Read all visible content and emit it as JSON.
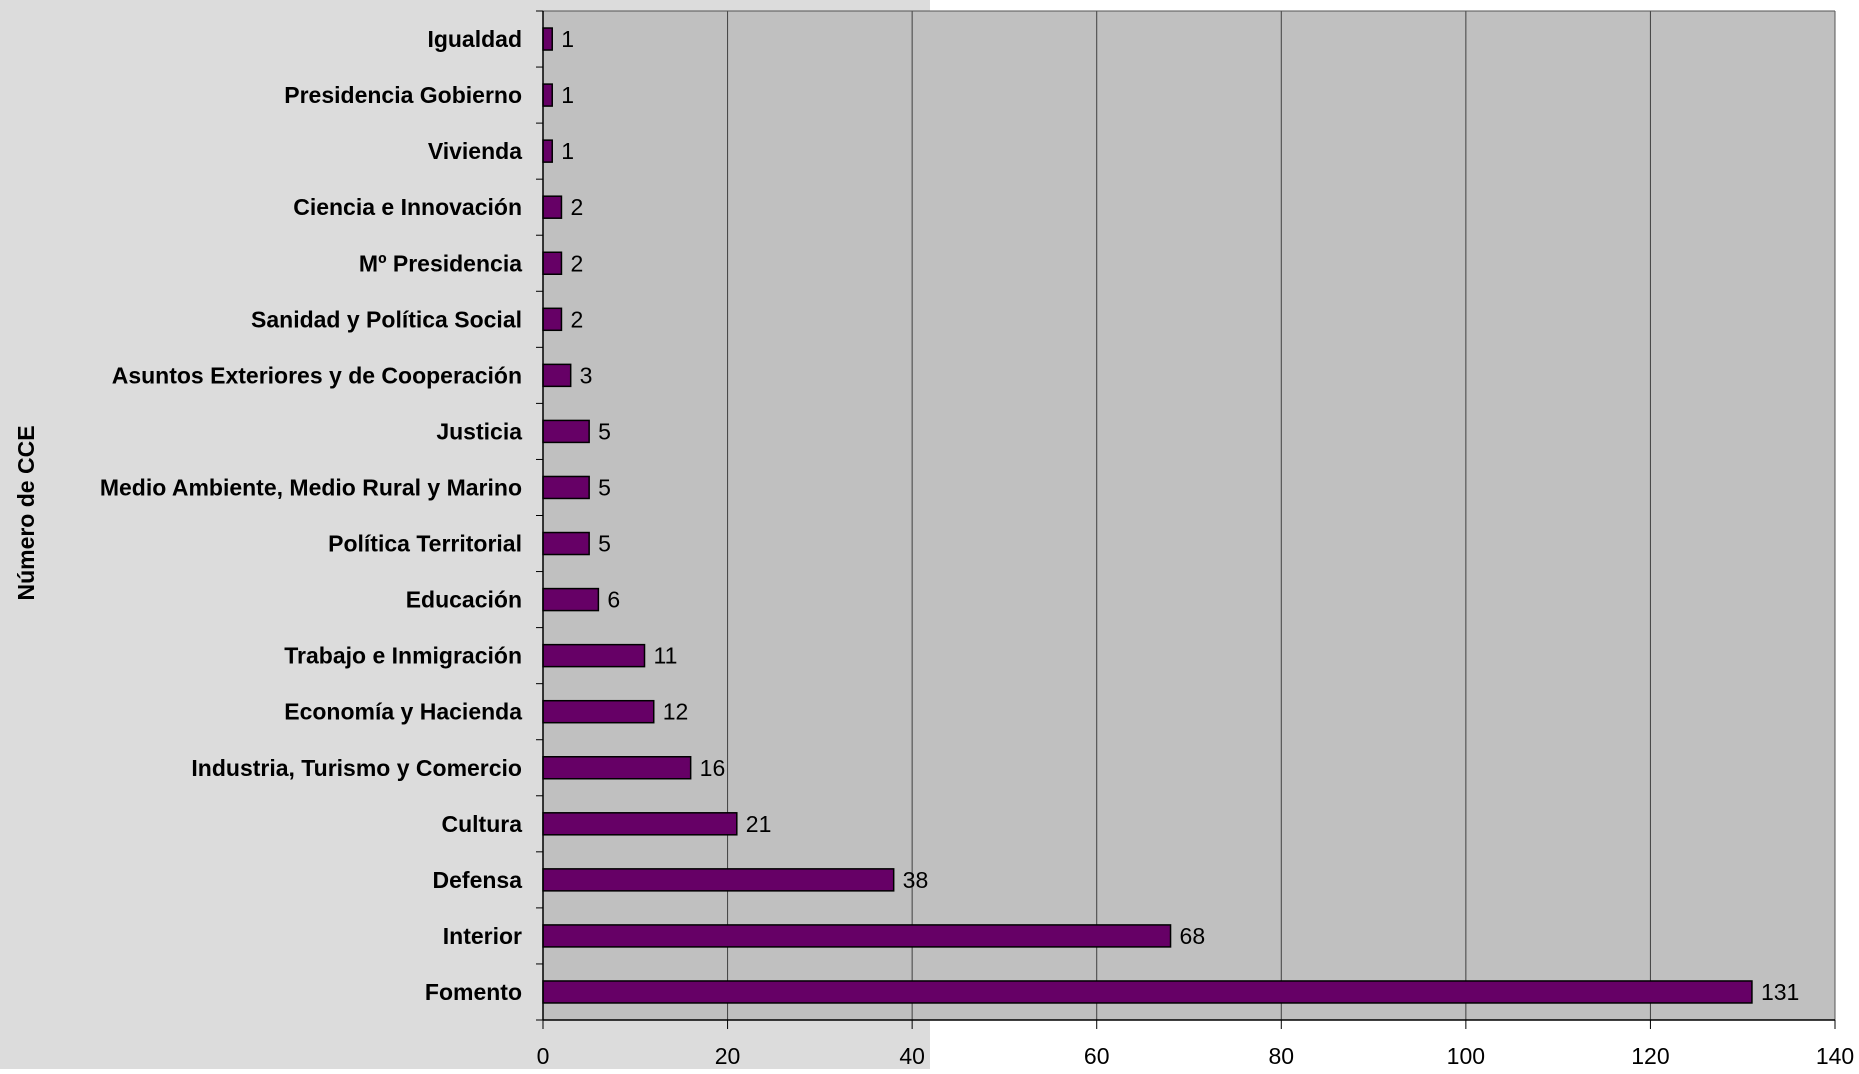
{
  "colors": {
    "chart_area": "#dcdcdc",
    "plot_area": "#c0c0c0",
    "bar_fill": "#660066",
    "bar_stroke": "#000000",
    "gridline": "#404040"
  },
  "chart_data": {
    "type": "bar",
    "orientation": "horizontal",
    "categories": [
      "Igualdad",
      "Presidencia Gobierno",
      "Vivienda",
      "Ciencia e Innovación",
      "Mº Presidencia",
      "Sanidad y Política Social",
      "Asuntos Exteriores y de Cooperación",
      "Justicia",
      "Medio Ambiente, Medio Rural y Marino",
      "Política Territorial",
      "Educación",
      "Trabajo e Inmigración",
      "Economía y Hacienda",
      "Industria, Turismo y Comercio",
      "Cultura",
      "Defensa",
      "Interior",
      "Fomento"
    ],
    "values": [
      1,
      1,
      1,
      2,
      2,
      2,
      3,
      5,
      5,
      5,
      6,
      11,
      12,
      16,
      21,
      38,
      68,
      131
    ],
    "xlim": [
      0,
      140
    ],
    "xticks": [
      "0",
      "20",
      "40",
      "60",
      "80",
      "100",
      "120",
      "140"
    ],
    "ylabel": "Número de CCE",
    "xlabel": "",
    "title": "",
    "grid": "vertical gridlines",
    "legend": "none"
  }
}
